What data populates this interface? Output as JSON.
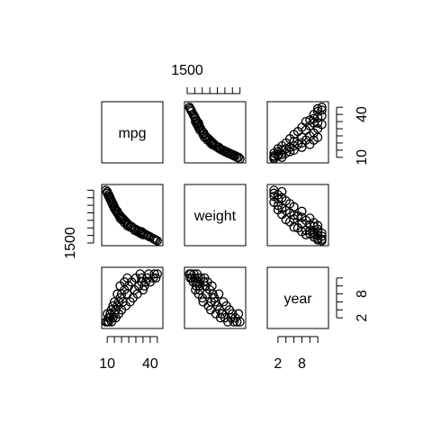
{
  "chart_data": {
    "type": "scatter",
    "variables": [
      {
        "name": "mpg",
        "range": [
          8,
          47
        ],
        "ticks": [
          10,
          15,
          20,
          25,
          30,
          35,
          40,
          45
        ],
        "tick_labels": [
          "10",
          "40"
        ]
      },
      {
        "name": "weight",
        "range": [
          1500,
          5200
        ],
        "ticks": [
          1500,
          2000,
          2500,
          3000,
          3500,
          4000,
          4500,
          5000
        ],
        "tick_labels": [
          "1500"
        ]
      },
      {
        "name": "year",
        "range": [
          0,
          14
        ],
        "ticks": [
          2,
          4,
          6,
          8,
          10,
          12
        ],
        "tick_labels": [
          "2",
          "8"
        ]
      }
    ],
    "marker": "open-circle",
    "n_points": 150,
    "grid": false,
    "legend": "none",
    "title": "",
    "sample_points": [
      [
        44,
        1700,
        12
      ],
      [
        43,
        1750,
        13
      ],
      [
        40,
        1900,
        11
      ],
      [
        38,
        2000,
        12
      ],
      [
        36,
        2100,
        10
      ],
      [
        35,
        2050,
        9
      ],
      [
        34,
        2200,
        11
      ],
      [
        33,
        2150,
        13
      ],
      [
        32,
        2300,
        10
      ],
      [
        31,
        2250,
        8
      ],
      [
        30,
        2400,
        12
      ],
      [
        29,
        2350,
        9
      ],
      [
        28,
        2500,
        7
      ],
      [
        27,
        2600,
        11
      ],
      [
        26,
        2550,
        6
      ],
      [
        25,
        2700,
        10
      ],
      [
        24,
        2800,
        8
      ],
      [
        24,
        2650,
        12
      ],
      [
        23,
        2900,
        5
      ],
      [
        22,
        3000,
        9
      ],
      [
        22,
        2850,
        11
      ],
      [
        21,
        3100,
        6
      ],
      [
        20,
        3200,
        8
      ],
      [
        20,
        3050,
        4
      ],
      [
        19,
        3300,
        7
      ],
      [
        19,
        3150,
        10
      ],
      [
        18,
        3400,
        3
      ],
      [
        18,
        3350,
        6
      ],
      [
        17,
        3500,
        5
      ],
      [
        17,
        3600,
        8
      ],
      [
        16,
        3700,
        2
      ],
      [
        16,
        3650,
        4
      ],
      [
        15,
        3800,
        3
      ],
      [
        15,
        3900,
        6
      ],
      [
        14,
        4000,
        2
      ],
      [
        14,
        4100,
        5
      ],
      [
        13,
        4200,
        1
      ],
      [
        13,
        4300,
        4
      ],
      [
        12,
        4400,
        2
      ],
      [
        12,
        4500,
        3
      ],
      [
        11,
        4600,
        1
      ],
      [
        11,
        4700,
        2
      ],
      [
        10,
        4800,
        1
      ],
      [
        10,
        4900,
        3
      ],
      [
        9,
        5000,
        1
      ],
      [
        45,
        1650,
        13
      ],
      [
        42,
        1800,
        12
      ],
      [
        39,
        1950,
        13
      ],
      [
        37,
        2050,
        11
      ],
      [
        34,
        2250,
        12
      ]
    ]
  }
}
